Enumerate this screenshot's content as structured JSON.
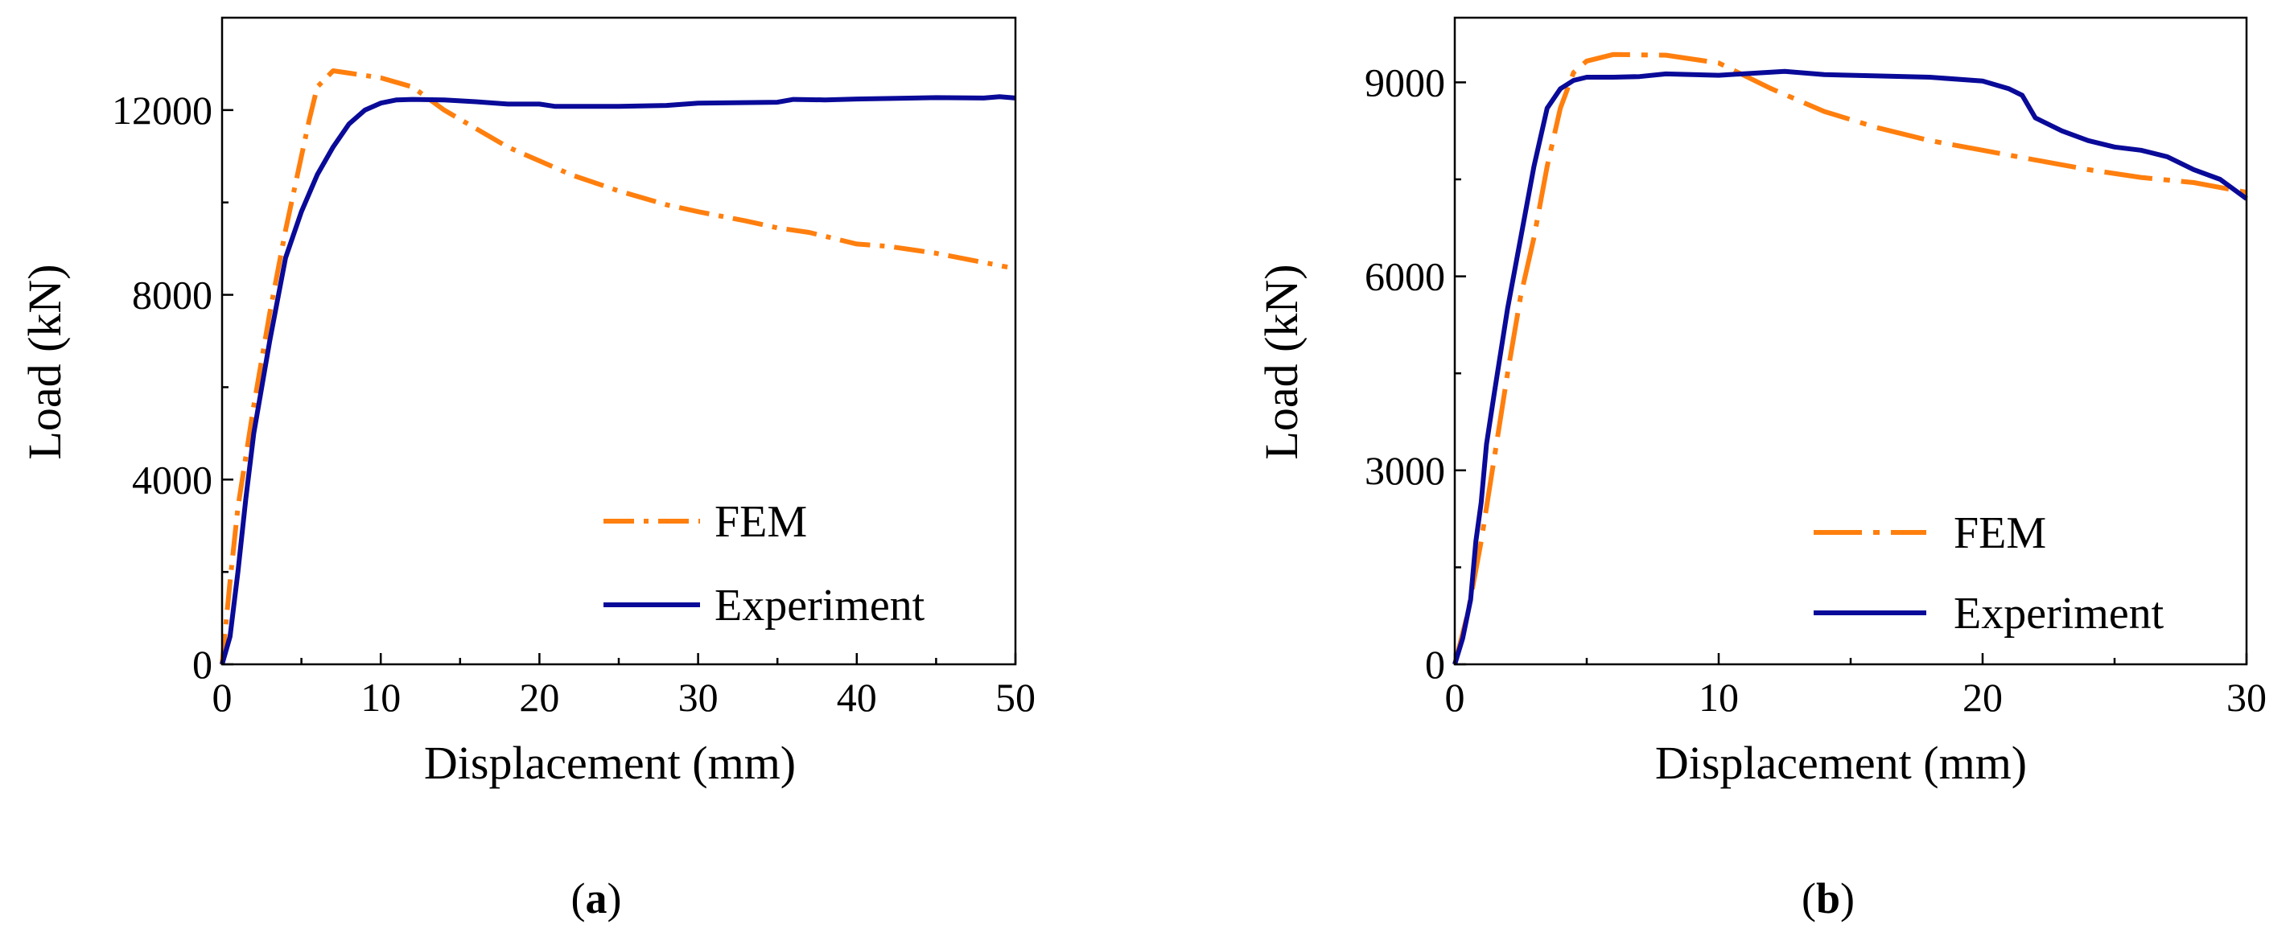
{
  "chart_data": [
    {
      "type": "line",
      "panel_label": "a",
      "xlabel": "Displacement (mm)",
      "ylabel": "Load (kN)",
      "xlim": [
        0,
        50
      ],
      "ylim": [
        0,
        14000
      ],
      "xticks": [
        0,
        10,
        20,
        30,
        40,
        50
      ],
      "yticks": [
        0,
        4000,
        8000,
        12000
      ],
      "grid": false,
      "legend_position": "bottom-right",
      "series": [
        {
          "name": "FEM",
          "color": "#ff7f0e",
          "style": "dash-dot",
          "points": [
            [
              0,
              0
            ],
            [
              0.5,
              1800
            ],
            [
              1,
              3400
            ],
            [
              2,
              5600
            ],
            [
              3,
              7600
            ],
            [
              4,
              9400
            ],
            [
              5,
              11000
            ],
            [
              5.5,
              11800
            ],
            [
              6,
              12500
            ],
            [
              7,
              12850
            ],
            [
              8,
              12800
            ],
            [
              10,
              12700
            ],
            [
              12,
              12500
            ],
            [
              14,
              12000
            ],
            [
              16,
              11600
            ],
            [
              18,
              11200
            ],
            [
              20,
              10900
            ],
            [
              22,
              10600
            ],
            [
              25,
              10250
            ],
            [
              28,
              9950
            ],
            [
              30,
              9800
            ],
            [
              33,
              9600
            ],
            [
              35,
              9450
            ],
            [
              37,
              9350
            ],
            [
              40,
              9100
            ],
            [
              42,
              9050
            ],
            [
              45,
              8900
            ],
            [
              48,
              8700
            ],
            [
              49.5,
              8600
            ]
          ]
        },
        {
          "name": "Experiment",
          "color": "#0a0a99",
          "style": "solid",
          "points": [
            [
              0,
              0
            ],
            [
              0.5,
              600
            ],
            [
              1,
              2000
            ],
            [
              1.5,
              3600
            ],
            [
              2,
              5000
            ],
            [
              3,
              7000
            ],
            [
              4,
              8800
            ],
            [
              5,
              9800
            ],
            [
              6,
              10600
            ],
            [
              7,
              11200
            ],
            [
              8,
              11700
            ],
            [
              9,
              12000
            ],
            [
              10,
              12150
            ],
            [
              11,
              12220
            ],
            [
              12,
              12230
            ],
            [
              14,
              12220
            ],
            [
              16,
              12180
            ],
            [
              18,
              12130
            ],
            [
              20,
              12130
            ],
            [
              21,
              12080
            ],
            [
              25,
              12080
            ],
            [
              28,
              12100
            ],
            [
              30,
              12150
            ],
            [
              35,
              12170
            ],
            [
              36,
              12230
            ],
            [
              38,
              12220
            ],
            [
              40,
              12240
            ],
            [
              45,
              12270
            ],
            [
              48,
              12260
            ],
            [
              49,
              12290
            ],
            [
              50,
              12260
            ]
          ]
        }
      ]
    },
    {
      "type": "line",
      "panel_label": "b",
      "xlabel": "Displacement (mm)",
      "ylabel": "Load (kN)",
      "xlim": [
        0,
        30
      ],
      "ylim": [
        0,
        10000
      ],
      "xticks": [
        0,
        10,
        20,
        30
      ],
      "yticks": [
        0,
        3000,
        6000,
        9000
      ],
      "grid": false,
      "legend_position": "bottom-right",
      "series": [
        {
          "name": "FEM",
          "color": "#ff7f0e",
          "style": "long-dash-dot",
          "points": [
            [
              0,
              0
            ],
            [
              0.5,
              800
            ],
            [
              1,
              1900
            ],
            [
              1.5,
              3200
            ],
            [
              2,
              4500
            ],
            [
              2.5,
              5700
            ],
            [
              3,
              6600
            ],
            [
              3.5,
              7700
            ],
            [
              4,
              8600
            ],
            [
              4.5,
              9150
            ],
            [
              5,
              9330
            ],
            [
              6,
              9430
            ],
            [
              8,
              9420
            ],
            [
              10,
              9300
            ],
            [
              12,
              8900
            ],
            [
              14,
              8550
            ],
            [
              16,
              8300
            ],
            [
              18,
              8100
            ],
            [
              20,
              7950
            ],
            [
              22,
              7800
            ],
            [
              24,
              7650
            ],
            [
              26,
              7530
            ],
            [
              28,
              7450
            ],
            [
              30,
              7300
            ]
          ]
        },
        {
          "name": "Experiment",
          "color": "#0a0a99",
          "style": "solid",
          "points": [
            [
              0,
              0
            ],
            [
              0.3,
              400
            ],
            [
              0.6,
              1000
            ],
            [
              0.8,
              1900
            ],
            [
              1.0,
              2500
            ],
            [
              1.2,
              3400
            ],
            [
              1.5,
              4200
            ],
            [
              2.0,
              5500
            ],
            [
              2.5,
              6600
            ],
            [
              3.0,
              7700
            ],
            [
              3.5,
              8600
            ],
            [
              4.0,
              8900
            ],
            [
              4.5,
              9030
            ],
            [
              5.0,
              9080
            ],
            [
              6.0,
              9080
            ],
            [
              7.0,
              9090
            ],
            [
              8.0,
              9130
            ],
            [
              10.0,
              9110
            ],
            [
              12.5,
              9170
            ],
            [
              14,
              9120
            ],
            [
              16,
              9100
            ],
            [
              18,
              9080
            ],
            [
              20,
              9020
            ],
            [
              21,
              8900
            ],
            [
              21.5,
              8800
            ],
            [
              22,
              8450
            ],
            [
              23,
              8250
            ],
            [
              24,
              8100
            ],
            [
              25,
              8000
            ],
            [
              26,
              7950
            ],
            [
              27,
              7850
            ],
            [
              28,
              7650
            ],
            [
              29,
              7500
            ],
            [
              30,
              7200
            ]
          ]
        }
      ]
    }
  ]
}
